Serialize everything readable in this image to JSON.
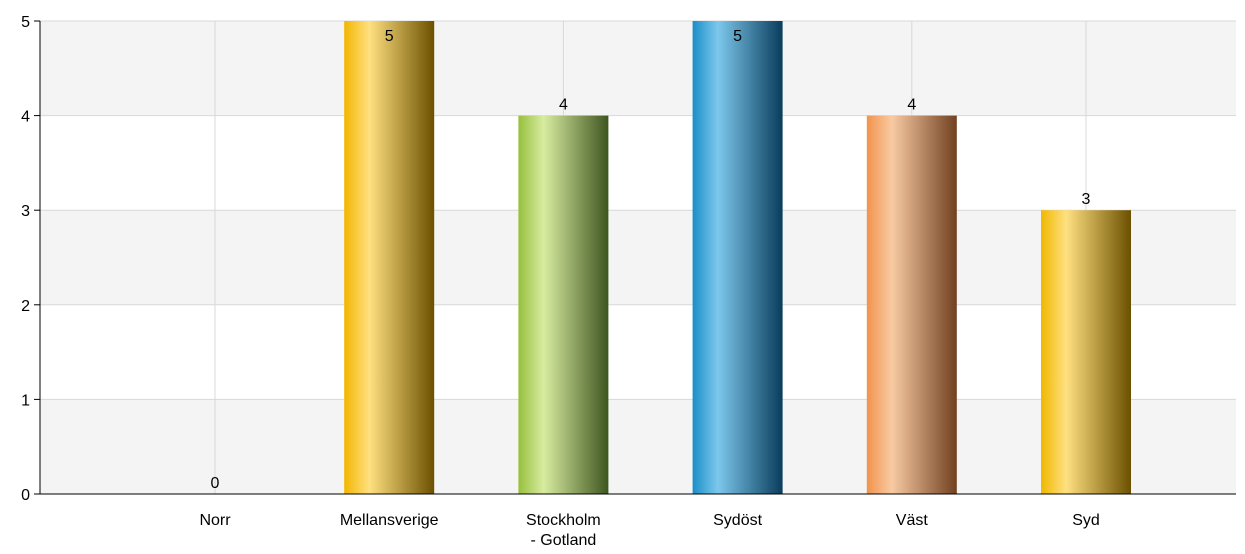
{
  "chart_data": {
    "type": "bar",
    "categories": [
      "Norr",
      "Mellansverige",
      "Stockholm\n- Gotland",
      "Sydöst",
      "Väst",
      "Syd"
    ],
    "values": [
      0,
      5,
      4,
      5,
      4,
      3
    ],
    "ylim": [
      0,
      5
    ],
    "yticks": [
      0,
      1,
      2,
      3,
      4,
      5
    ],
    "grid": true,
    "alternating_bands": true,
    "show_data_labels": true,
    "bar_colors": [
      [
        "#e0b000",
        "#ffe080",
        "#6b5000"
      ],
      [
        "#f2b600",
        "#ffe080",
        "#6b5000"
      ],
      [
        "#96c03c",
        "#d8eca0",
        "#3e5520"
      ],
      [
        "#1a8ec8",
        "#7cc8ec",
        "#0a3c5c"
      ],
      [
        "#f2934c",
        "#f8caa2",
        "#704020"
      ],
      [
        "#f0b800",
        "#ffe080",
        "#6b5000"
      ]
    ],
    "band_color": "#f4f4f4",
    "grid_color": "#d8d8d8",
    "axis_color": "#000000"
  }
}
